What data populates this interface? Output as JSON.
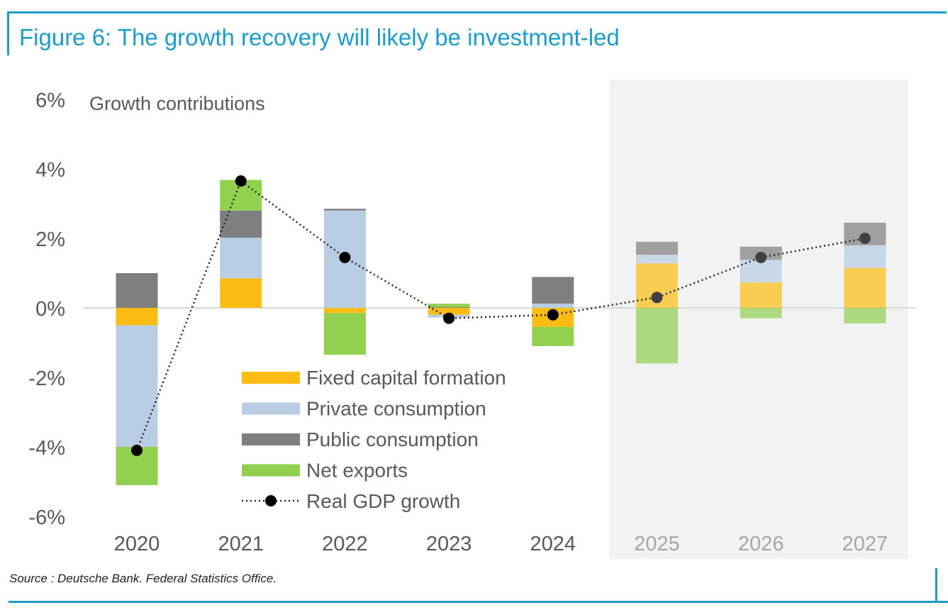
{
  "title": "Figure 6: The growth recovery will likely be investment-led",
  "source": "Source : Deutsche Bank. Federal Statistics Office.",
  "colors": {
    "accent": "#1b9ccb",
    "fixed_capital_formation": "#fbbd13",
    "private_consumption": "#b9cde5",
    "public_consumption": "#7f7f7f",
    "net_exports": "#92d050",
    "real_gdp_growth": "#000000",
    "forecast_background": "#f2f2f2",
    "axis_text": "#595959"
  },
  "chart_data": {
    "type": "bar",
    "stacked": true,
    "title": "Growth contributions",
    "categories": [
      "2020",
      "2021",
      "2022",
      "2023",
      "2024",
      "2025",
      "2026",
      "2027"
    ],
    "forecast_categories": [
      "2025",
      "2026",
      "2027"
    ],
    "ylim": [
      -6,
      6
    ],
    "yticks": [
      "6%",
      "4%",
      "2%",
      "0%",
      "-2%",
      "-4%",
      "-6%"
    ],
    "legend_position": "lower-center",
    "grid": false,
    "series": [
      {
        "name": "Fixed capital formation",
        "type": "bar",
        "color": "#fbbd13",
        "values": [
          -0.5,
          0.85,
          -0.15,
          -0.2,
          -0.55,
          1.28,
          0.73,
          1.15
        ]
      },
      {
        "name": "Private consumption",
        "type": "bar",
        "color": "#b9cde5",
        "values": [
          -3.5,
          1.17,
          2.8,
          -0.08,
          0.12,
          0.25,
          0.65,
          0.65
        ]
      },
      {
        "name": "Public consumption",
        "type": "bar",
        "color": "#7f7f7f",
        "values": [
          1.0,
          0.78,
          0.05,
          0.02,
          0.77,
          0.37,
          0.38,
          0.65
        ]
      },
      {
        "name": "Net exports",
        "type": "bar",
        "color": "#92d050",
        "values": [
          -1.1,
          0.88,
          -1.2,
          0.1,
          -0.55,
          -1.6,
          -0.3,
          -0.45
        ]
      },
      {
        "name": "Real GDP growth",
        "type": "line",
        "color": "#000000",
        "values": [
          -4.1,
          3.65,
          1.45,
          -0.3,
          -0.2,
          0.3,
          1.45,
          2.0
        ]
      }
    ]
  }
}
